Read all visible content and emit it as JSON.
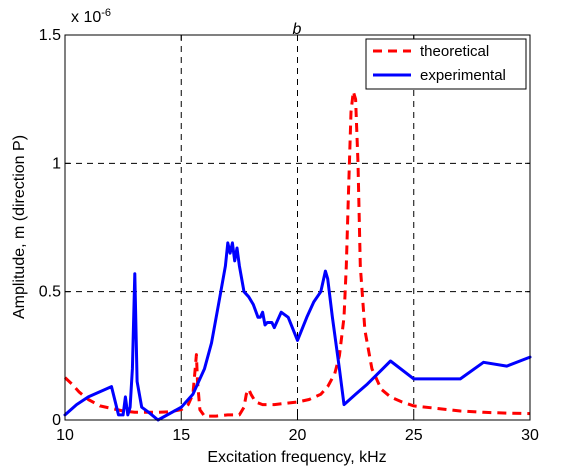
{
  "chart_data": {
    "type": "line",
    "title": "b",
    "xlabel": "Excitation frequency, kHz",
    "ylabel": "Amplitude, m (direction P)",
    "exponent_label": "x 10",
    "exponent_power": "-6",
    "xlim": [
      10,
      30
    ],
    "ylim": [
      0,
      1.5
    ],
    "xticks": [
      10,
      15,
      20,
      25,
      30
    ],
    "xtick_labels": [
      "10",
      "15",
      "20",
      "25",
      "30"
    ],
    "yticks": [
      0,
      0.5,
      1,
      1.5
    ],
    "ytick_labels": [
      "0",
      "0.5",
      "1",
      "1.5"
    ],
    "grid": true,
    "legend_position": "top-right",
    "series": [
      {
        "name": "theoretical",
        "color": "#ff0000",
        "dash": "dashed",
        "x": [
          10,
          10.3,
          10.6,
          11,
          11.5,
          12,
          12.5,
          13,
          13.5,
          14,
          14.5,
          15,
          15.3,
          15.5,
          15.6,
          15.65,
          15.7,
          15.8,
          16,
          16.5,
          17,
          17.5,
          17.7,
          17.8,
          17.9,
          18,
          18.2,
          18.5,
          19,
          19.5,
          20,
          20.5,
          21,
          21.3,
          21.6,
          21.8,
          22,
          22.1,
          22.2,
          22.3,
          22.4,
          22.5,
          22.6,
          22.7,
          22.9,
          23.2,
          23.6,
          24,
          24.5,
          25,
          26,
          27,
          28,
          29,
          30
        ],
        "y": [
          0.165,
          0.14,
          0.11,
          0.08,
          0.055,
          0.045,
          0.035,
          0.03,
          0.03,
          0.03,
          0.032,
          0.04,
          0.06,
          0.1,
          0.2,
          0.255,
          0.15,
          0.04,
          0.015,
          0.015,
          0.02,
          0.02,
          0.05,
          0.1,
          0.12,
          0.1,
          0.07,
          0.06,
          0.06,
          0.065,
          0.07,
          0.08,
          0.1,
          0.13,
          0.18,
          0.25,
          0.4,
          0.6,
          0.9,
          1.2,
          1.28,
          1.25,
          1.0,
          0.6,
          0.35,
          0.2,
          0.12,
          0.09,
          0.07,
          0.055,
          0.045,
          0.035,
          0.03,
          0.027,
          0.025
        ]
      },
      {
        "name": "experimental",
        "color": "#0000ff",
        "dash": "solid",
        "x": [
          10,
          10.5,
          11,
          12,
          12.3,
          12.5,
          12.6,
          12.7,
          12.8,
          12.9,
          13,
          13.1,
          13.3,
          13.6,
          14,
          15,
          15.5,
          16,
          16.3,
          16.6,
          16.9,
          17,
          17.1,
          17.2,
          17.3,
          17.4,
          17.5,
          17.7,
          17.9,
          18.1,
          18.3,
          18.4,
          18.5,
          18.6,
          18.7,
          18.9,
          19,
          19.3,
          19.6,
          20,
          20.4,
          20.7,
          21,
          21.2,
          21.3,
          21.5,
          21.8,
          22,
          22.5,
          23,
          24,
          25,
          26,
          27,
          28,
          29,
          30
        ],
        "y": [
          0.02,
          0.06,
          0.09,
          0.13,
          0.02,
          0.02,
          0.09,
          0.02,
          0.05,
          0.2,
          0.57,
          0.15,
          0.05,
          0.03,
          0.0,
          0.05,
          0.1,
          0.2,
          0.3,
          0.45,
          0.6,
          0.69,
          0.65,
          0.69,
          0.62,
          0.67,
          0.6,
          0.5,
          0.48,
          0.45,
          0.4,
          0.4,
          0.42,
          0.37,
          0.38,
          0.38,
          0.36,
          0.42,
          0.4,
          0.31,
          0.4,
          0.46,
          0.5,
          0.58,
          0.55,
          0.4,
          0.2,
          0.06,
          0.1,
          0.14,
          0.23,
          0.16,
          0.16,
          0.16,
          0.225,
          0.21,
          0.245
        ]
      }
    ]
  }
}
